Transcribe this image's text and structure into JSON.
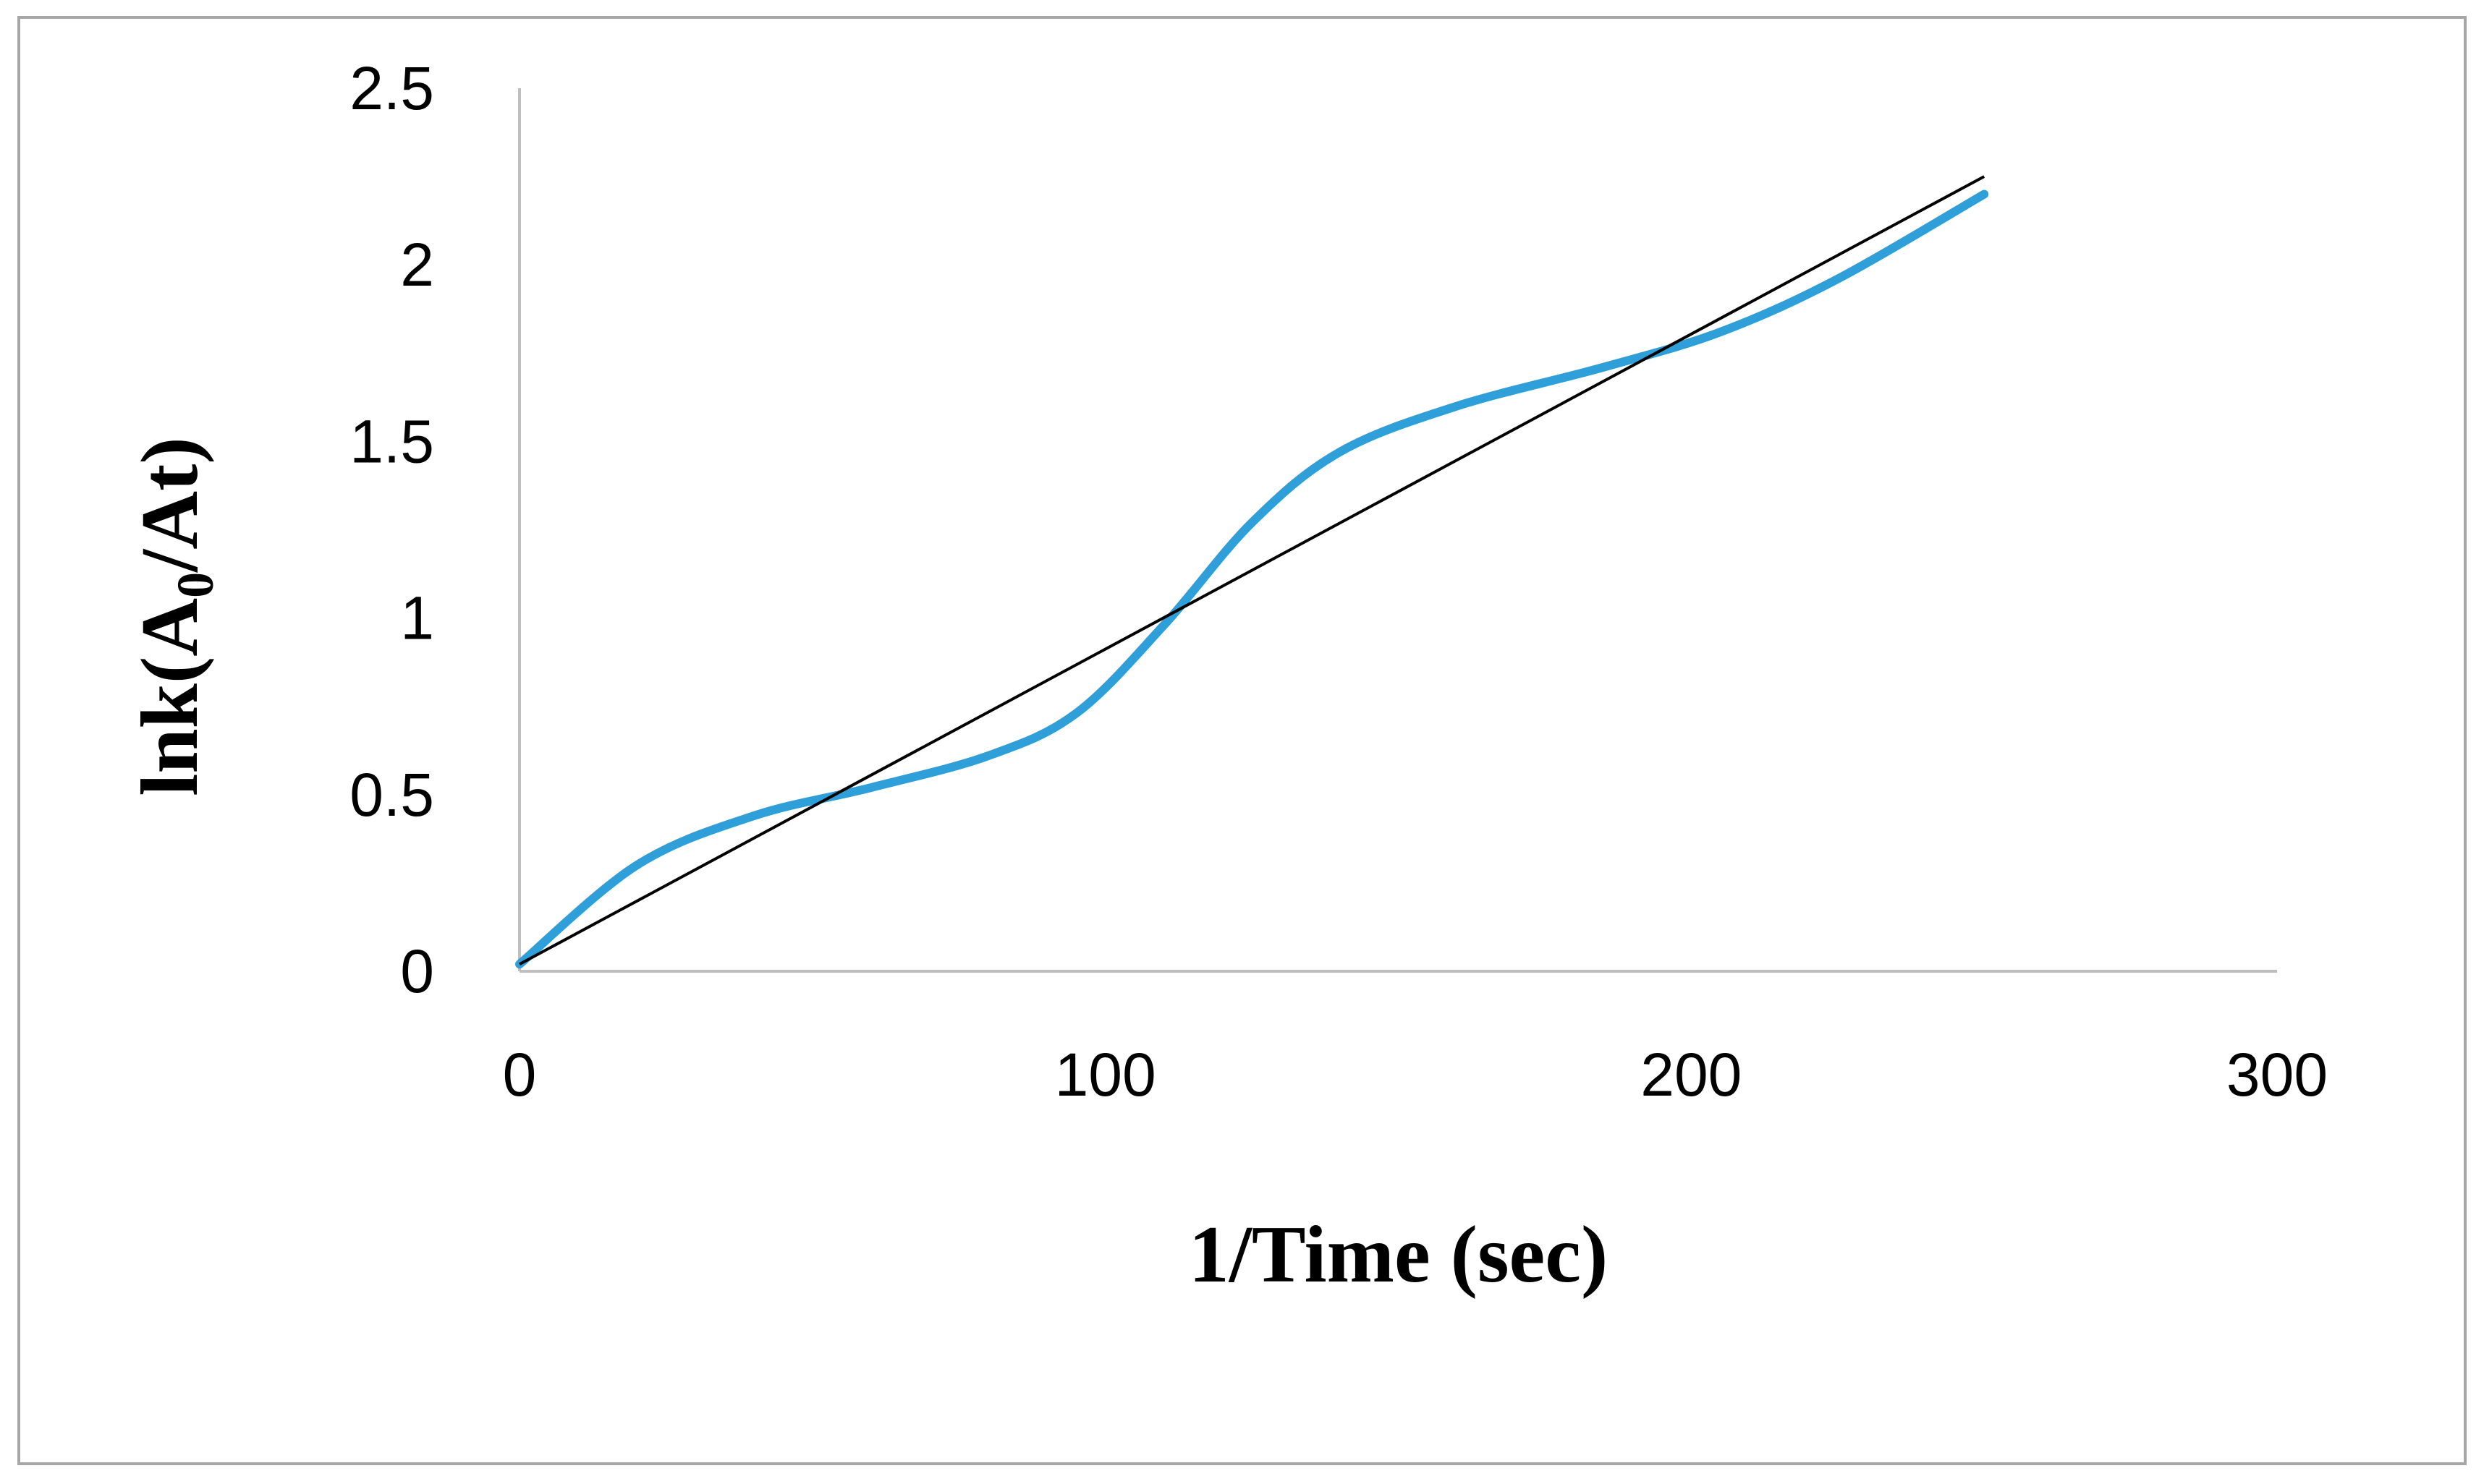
{
  "chart_data": {
    "type": "line",
    "title": "",
    "xlabel": "1/Time (sec)",
    "ylabel": {
      "prefix": "lnk(A",
      "subscript": "0",
      "suffix": "/At)"
    },
    "xlim": [
      0,
      300
    ],
    "ylim": [
      0,
      2.5
    ],
    "x_ticks": [
      0,
      100,
      200,
      300
    ],
    "y_ticks": [
      0,
      0.5,
      1,
      1.5,
      2,
      2.5
    ],
    "y_tick_labels": [
      "0",
      "0.5",
      "1",
      "1.5",
      "2",
      "2.5"
    ],
    "grid": false,
    "legend": "none",
    "series": [
      {
        "style": "smooth",
        "color": "#2E9FD8",
        "points": [
          [
            0,
            0.02
          ],
          [
            20,
            0.3
          ],
          [
            40,
            0.44
          ],
          [
            60,
            0.52
          ],
          [
            80,
            0.61
          ],
          [
            95,
            0.73
          ],
          [
            110,
            0.98
          ],
          [
            125,
            1.27
          ],
          [
            140,
            1.47
          ],
          [
            160,
            1.6
          ],
          [
            185,
            1.71
          ],
          [
            205,
            1.81
          ],
          [
            225,
            1.96
          ],
          [
            250,
            2.2
          ]
        ]
      },
      {
        "style": "straight",
        "color": "#000000",
        "points": [
          [
            0,
            0.02
          ],
          [
            250,
            2.25
          ]
        ]
      }
    ]
  }
}
